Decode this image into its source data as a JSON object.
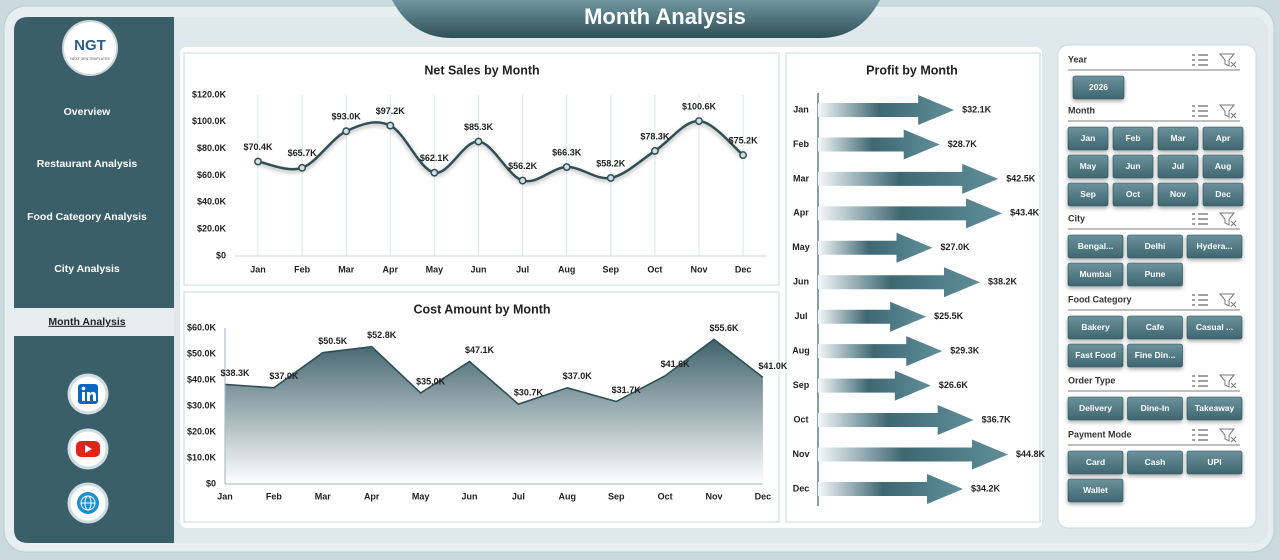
{
  "header": {
    "title": "Month Analysis"
  },
  "logo": {
    "text": "NGT",
    "subtitle": "NEXT GEN TEMPLATES"
  },
  "nav": [
    "Overview",
    "Restaurant Analysis",
    "Food Category Analysis",
    "City Analysis",
    "Month Analysis"
  ],
  "slicers": [
    {
      "title": "Year",
      "items": [
        "2026"
      ]
    },
    {
      "title": "Month",
      "items": [
        "Jan",
        "Feb",
        "Mar",
        "Apr",
        "May",
        "Jun",
        "Jul",
        "Aug",
        "Sep",
        "Oct",
        "Nov",
        "Dec"
      ]
    },
    {
      "title": "City",
      "items": [
        "Bengal...",
        "Delhi",
        "Hydera...",
        "Mumbai",
        "Pune"
      ]
    },
    {
      "title": "Food Category",
      "items": [
        "Bakery",
        "Cafe",
        "Casual ...",
        "Fast Food",
        "Fine Din..."
      ]
    },
    {
      "title": "Order Type",
      "items": [
        "Delivery",
        "Dine-In",
        "Takeaway"
      ]
    },
    {
      "title": "Payment Mode",
      "items": [
        "Card",
        "Cash",
        "UPI",
        "Wallet"
      ]
    }
  ],
  "chart_data": [
    {
      "type": "line",
      "title": "Net Sales by Month",
      "smooth": true,
      "color": "#2f4f57",
      "categories": [
        "Jan",
        "Feb",
        "Mar",
        "Apr",
        "May",
        "Jun",
        "Jul",
        "Aug",
        "Sep",
        "Oct",
        "Nov",
        "Dec"
      ],
      "values": [
        70400,
        65700,
        93000,
        97200,
        62100,
        85300,
        56200,
        66300,
        58200,
        78300,
        100600,
        75200
      ],
      "value_labels": [
        "$70.4K",
        "$65.7K",
        "$93.0K",
        "$97.2K",
        "$62.1K",
        "$85.3K",
        "$56.2K",
        "$66.3K",
        "$58.2K",
        "$78.3K",
        "$100.6K",
        "$75.2K"
      ],
      "ylim": [
        0,
        120000
      ],
      "yticks": [
        {
          "value": 0,
          "label": "$0"
        },
        {
          "value": 20000,
          "label": "$20.0K"
        },
        {
          "value": 40000,
          "label": "$40.0K"
        },
        {
          "value": 60000,
          "label": "$60.0K"
        },
        {
          "value": 80000,
          "label": "$80.0K"
        },
        {
          "value": 100000,
          "label": "$100.0K"
        },
        {
          "value": 120000,
          "label": "$120.0K"
        }
      ]
    },
    {
      "type": "area",
      "title": "Cost Amount by Month",
      "color": "#2f4f57",
      "categories": [
        "Jan",
        "Feb",
        "Mar",
        "Apr",
        "May",
        "Jun",
        "Jul",
        "Aug",
        "Sep",
        "Oct",
        "Nov",
        "Dec"
      ],
      "values": [
        38300,
        37000,
        50500,
        52800,
        35000,
        47100,
        30700,
        37000,
        31700,
        41600,
        55600,
        41000
      ],
      "value_labels": [
        "$38.3K",
        "$37.0K",
        "$50.5K",
        "$52.8K",
        "$35.0K",
        "$47.1K",
        "$30.7K",
        "$37.0K",
        "$31.7K",
        "$41.6K",
        "$55.6K",
        "$41.0K"
      ],
      "ylim": [
        0,
        60000
      ],
      "yticks": [
        {
          "value": 0,
          "label": "$0"
        },
        {
          "value": 10000,
          "label": "$10.0K"
        },
        {
          "value": 20000,
          "label": "$20.0K"
        },
        {
          "value": 30000,
          "label": "$30.0K"
        },
        {
          "value": 40000,
          "label": "$40.0K"
        },
        {
          "value": 50000,
          "label": "$50.0K"
        },
        {
          "value": 60000,
          "label": "$60.0K"
        }
      ]
    },
    {
      "type": "arrow-bar",
      "title": "Profit by Month",
      "color": "#4f7d88",
      "categories": [
        "Jan",
        "Feb",
        "Mar",
        "Apr",
        "May",
        "Jun",
        "Jul",
        "Aug",
        "Sep",
        "Oct",
        "Nov",
        "Dec"
      ],
      "values": [
        32100,
        28700,
        42500,
        43400,
        27000,
        38200,
        25500,
        29300,
        26600,
        36700,
        44800,
        34200
      ],
      "value_labels": [
        "$32.1K",
        "$28.7K",
        "$42.5K",
        "$43.4K",
        "$27.0K",
        "$38.2K",
        "$25.5K",
        "$29.3K",
        "$26.6K",
        "$36.7K",
        "$44.8K",
        "$34.2K"
      ]
    }
  ]
}
